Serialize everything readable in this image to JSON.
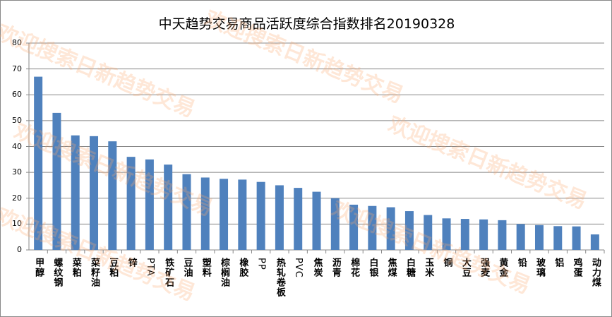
{
  "watermark": "欢迎搜索日新趋势交易",
  "chart_data": {
    "type": "bar",
    "title": "中天趋势交易商品活跃度综合指数排名20190328",
    "xlabel": "",
    "ylabel": "",
    "ylim": [
      0,
      80
    ],
    "yticks": [
      0,
      10,
      20,
      30,
      40,
      50,
      60,
      70,
      80
    ],
    "grid": true,
    "bar_color": "#4F81BD",
    "categories": [
      "甲醇",
      "螺纹钢",
      "菜粕",
      "菜籽油",
      "豆粕",
      "锌",
      "PTA",
      "铁矿石",
      "豆油",
      "塑料",
      "棕榈油",
      "橡胶",
      "PP",
      "热轧卷板",
      "PVC",
      "焦炭",
      "沥青",
      "棉花",
      "白银",
      "焦煤",
      "白糖",
      "玉米",
      "铜",
      "大豆",
      "强麦",
      "黄金",
      "铅",
      "玻璃",
      "铝",
      "鸡蛋",
      "动力煤"
    ],
    "values": [
      67,
      53,
      44.3,
      44,
      42,
      36,
      35,
      33,
      29.3,
      28,
      27.5,
      27.2,
      26.3,
      25,
      24,
      22.5,
      20,
      17.5,
      17,
      16.5,
      15,
      13.5,
      12.2,
      12,
      11.8,
      11.5,
      10,
      9.6,
      9.2,
      9.1,
      6
    ]
  }
}
